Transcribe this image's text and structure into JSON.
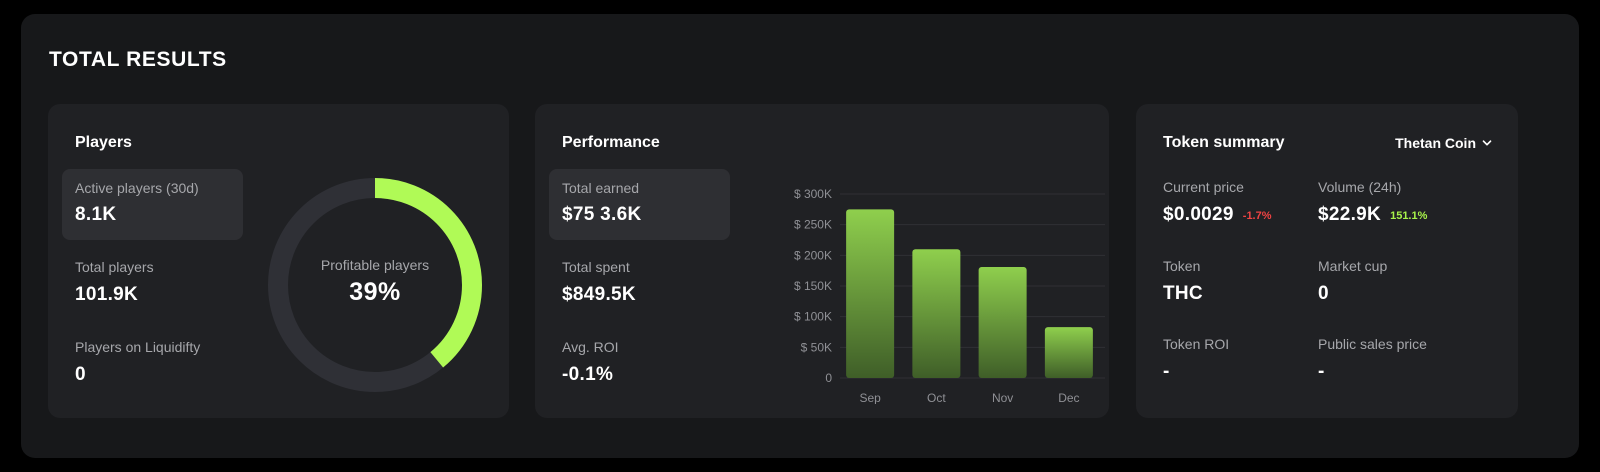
{
  "title": "TOTAL RESULTS",
  "players": {
    "title": "Players",
    "stats": [
      {
        "label": "Active players (30d)",
        "value": "8.1K"
      },
      {
        "label": "Total players",
        "value": "101.9K"
      },
      {
        "label": "Players on Liquidifty",
        "value": "0"
      }
    ],
    "donut": {
      "label": "Profitable players",
      "value_text": "39%",
      "percent": 39,
      "color": "#b0fa56",
      "track_color": "#2f3036"
    }
  },
  "performance": {
    "title": "Performance",
    "stats": [
      {
        "label": "Total earned",
        "value": "$75 3.6K"
      },
      {
        "label": "Total spent",
        "value": "$849.5K"
      },
      {
        "label": "Avg. ROI",
        "value": "-0.1%"
      }
    ]
  },
  "chart_data": {
    "type": "bar",
    "categories": [
      "Sep",
      "Oct",
      "Nov",
      "Dec"
    ],
    "values": [
      275000,
      210000,
      181000,
      83000
    ],
    "ylim": [
      0,
      300000
    ],
    "yticks": [
      0,
      50000,
      100000,
      150000,
      200000,
      250000,
      300000
    ],
    "ytick_labels": [
      "0",
      "$ 50K",
      "$ 100K",
      "$ 150K",
      "$ 200K",
      "$ 250K",
      "$ 300K"
    ],
    "grid": true,
    "bar_color_top": "#8fcf4d",
    "bar_color_bottom": "#3f5e28"
  },
  "token": {
    "title": "Token summary",
    "selector": "Thetan Coin",
    "stats": [
      {
        "label": "Current price",
        "value": "$0.0029",
        "change": "-1.7%"
      },
      {
        "label": "Volume (24h)",
        "value": "$22.9K",
        "change": "151.1%"
      },
      {
        "label": "Token",
        "value": "THC"
      },
      {
        "label": "Market cup",
        "value": "0"
      },
      {
        "label": "Token ROI",
        "value": "-"
      },
      {
        "label": "Public sales price",
        "value": "-"
      }
    ]
  }
}
